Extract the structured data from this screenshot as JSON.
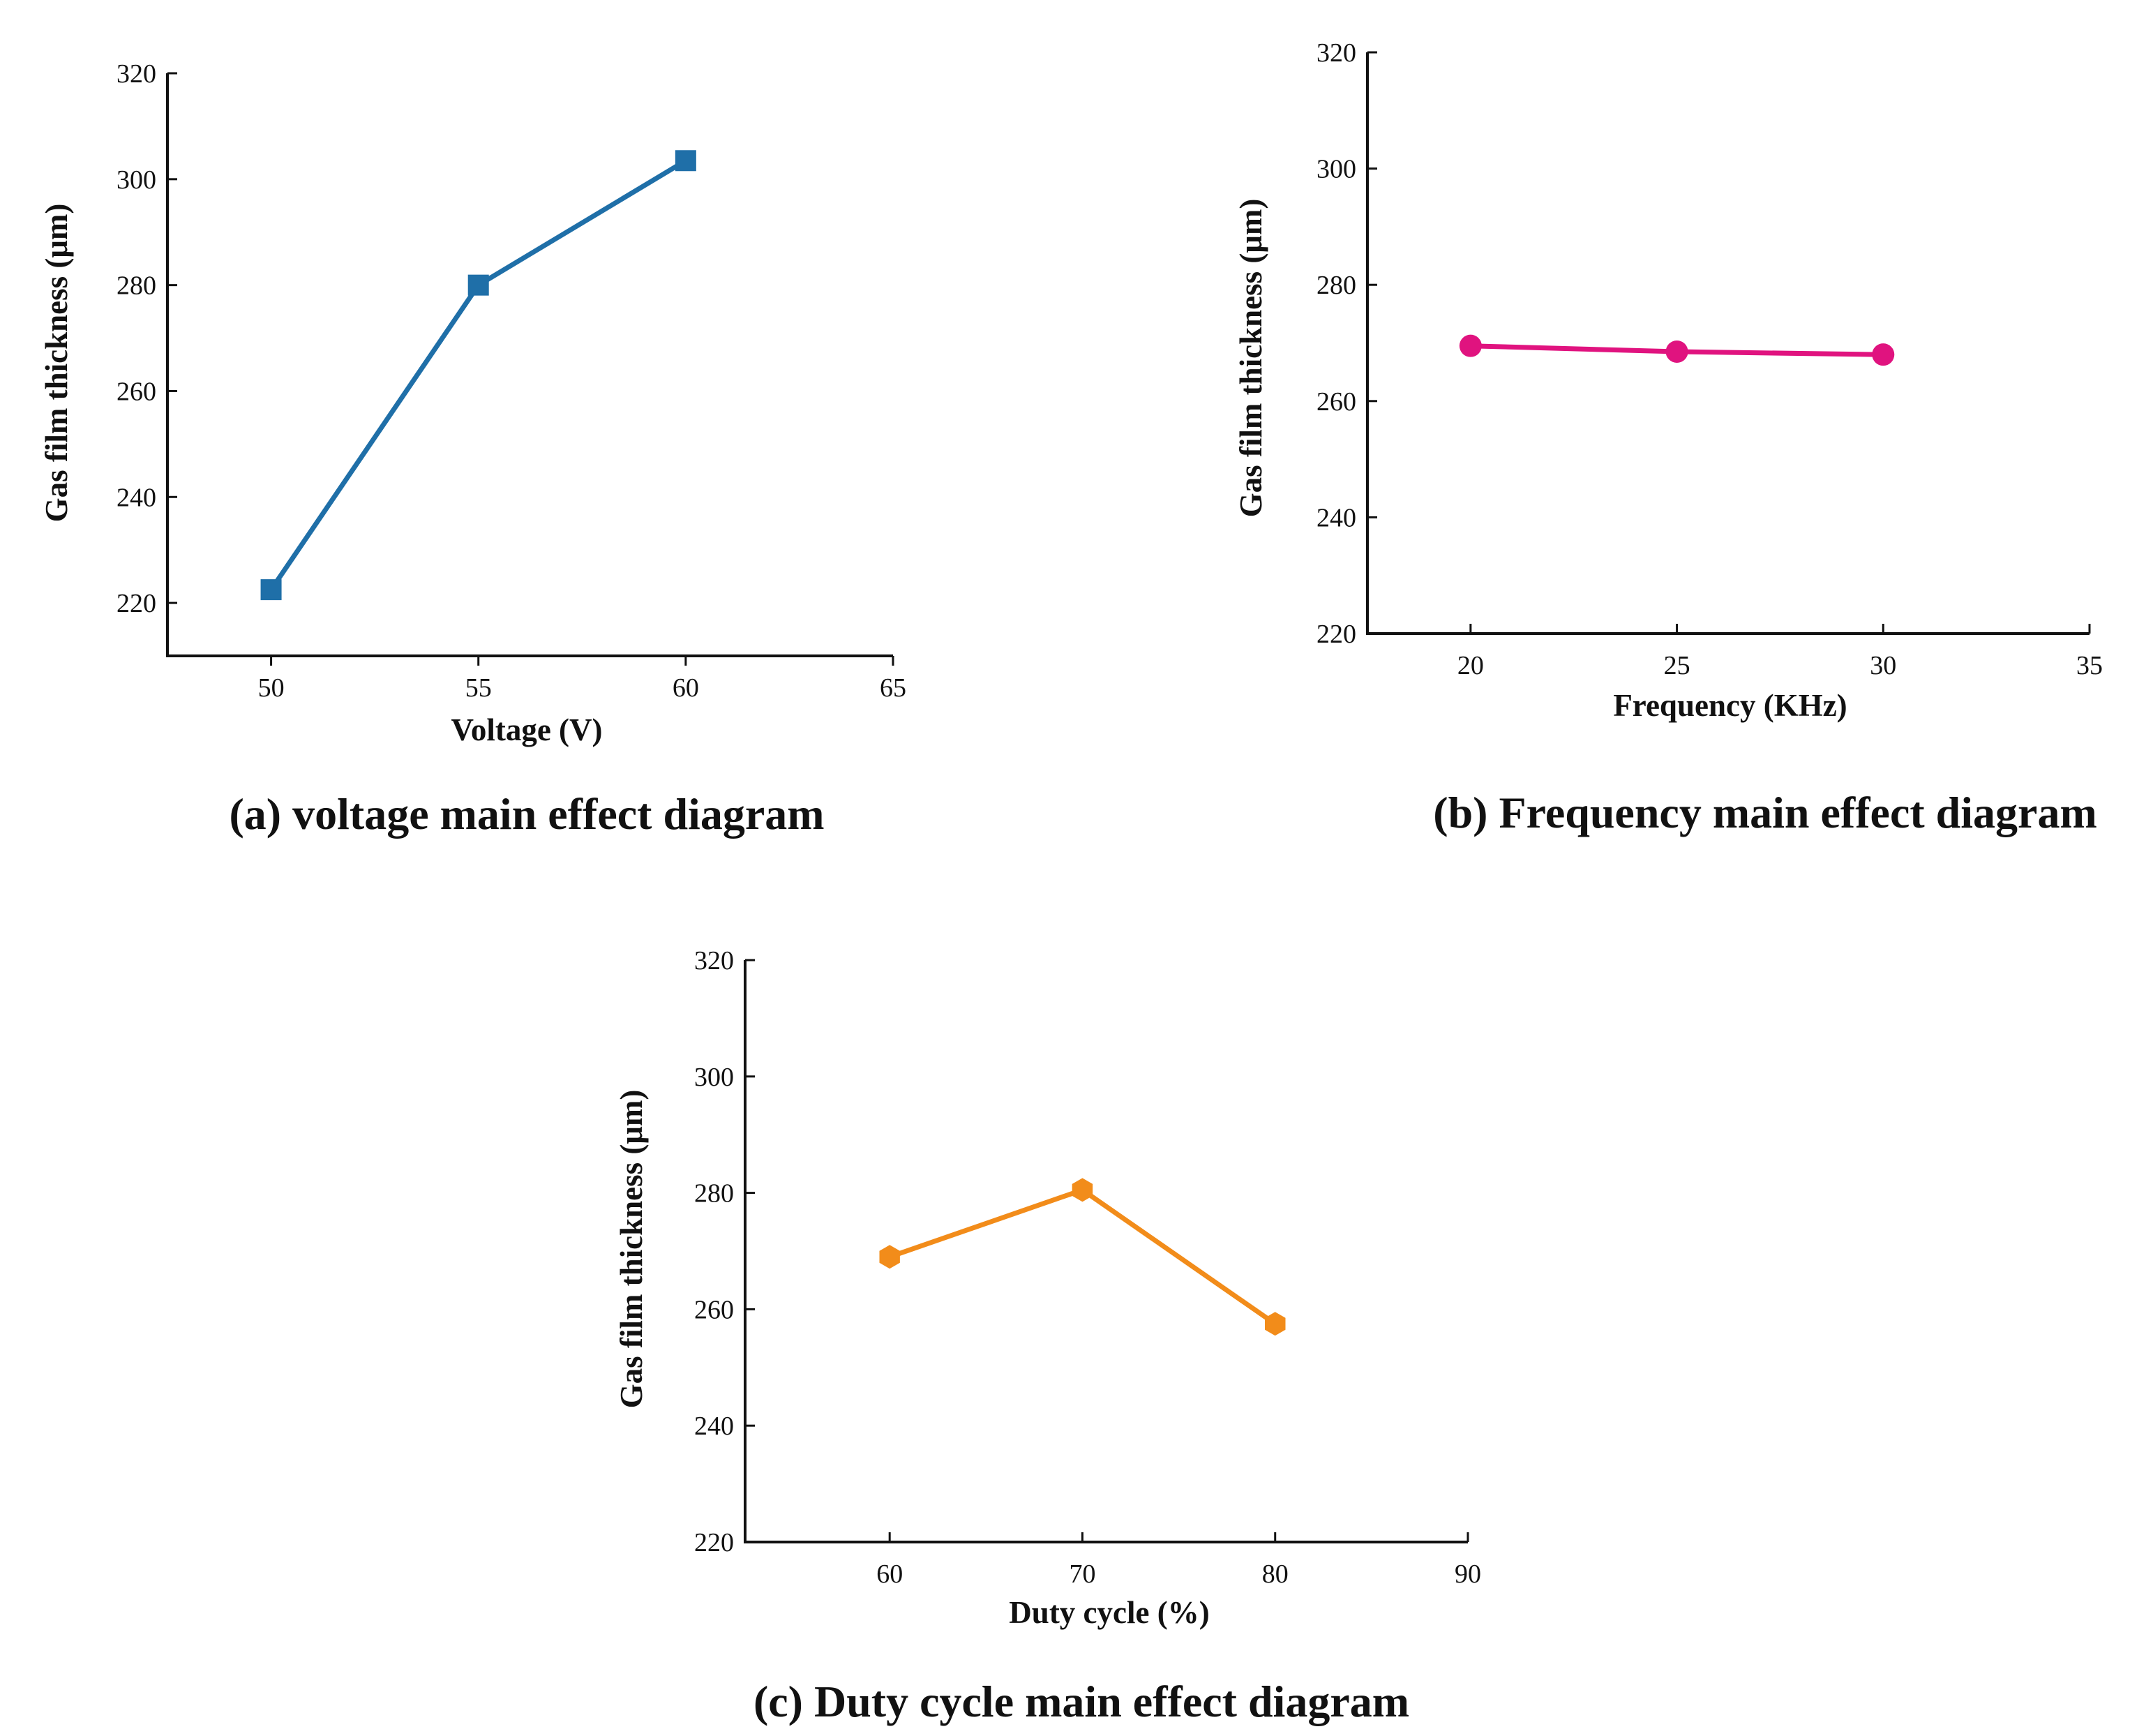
{
  "chart_data": [
    {
      "id": "a",
      "type": "line",
      "caption": "(a) voltage main effect diagram",
      "xlabel": "Voltage (V)",
      "ylabel": "Gas film thickness (μm)",
      "xlim": [
        47.5,
        65
      ],
      "ylim": [
        210,
        320
      ],
      "xticks": [
        50,
        55,
        60,
        65
      ],
      "yticks": [
        220,
        240,
        260,
        280,
        300,
        320
      ],
      "tick_side_x": "bottom",
      "color": "#1f6fa8",
      "marker": "square",
      "series": [
        {
          "name": "Voltage",
          "x": [
            50,
            55,
            60
          ],
          "y": [
            222.5,
            280,
            303.5
          ]
        }
      ]
    },
    {
      "id": "b",
      "type": "line",
      "caption": "(b) Frequency main effect diagram",
      "xlabel": "Frequency (KHz)",
      "ylabel": "Gas film thickness (μm)",
      "xlim": [
        17.5,
        35
      ],
      "ylim": [
        220,
        320
      ],
      "xticks": [
        20,
        25,
        30,
        35
      ],
      "yticks": [
        220,
        240,
        260,
        280,
        300,
        320
      ],
      "tick_side_x": "top",
      "color": "#e0137f",
      "marker": "circle",
      "series": [
        {
          "name": "Frequency",
          "x": [
            20,
            25,
            30
          ],
          "y": [
            269.5,
            268.5,
            268
          ]
        }
      ]
    },
    {
      "id": "c",
      "type": "line",
      "caption": "(c) Duty cycle main effect diagram",
      "xlabel": "Duty cycle (%)",
      "ylabel": "Gas film thickness (μm)",
      "xlim": [
        52.5,
        90
      ],
      "ylim": [
        220,
        320
      ],
      "xticks": [
        60,
        70,
        80,
        90
      ],
      "yticks": [
        220,
        240,
        260,
        280,
        300,
        320
      ],
      "tick_side_x": "top",
      "color": "#f28c1a",
      "marker": "hexagon",
      "series": [
        {
          "name": "Duty cycle",
          "x": [
            60,
            70,
            80
          ],
          "y": [
            269,
            280.5,
            257.5
          ]
        }
      ]
    }
  ]
}
